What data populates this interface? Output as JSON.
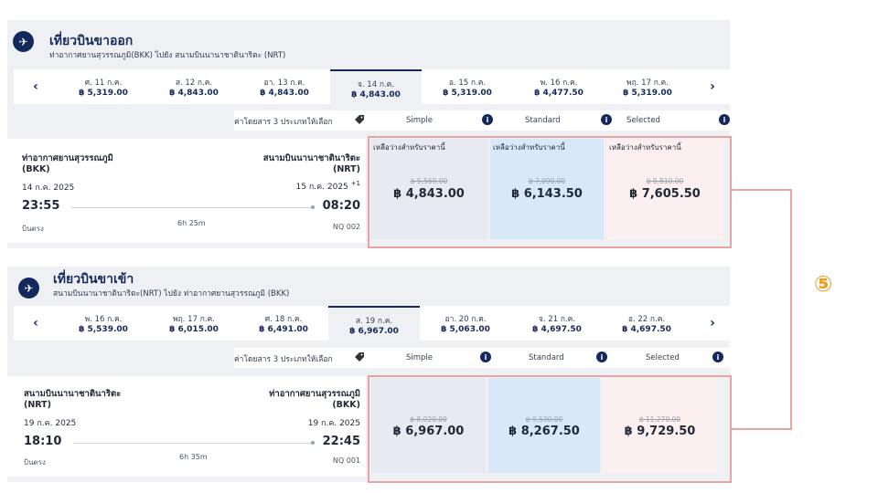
{
  "outbound": {
    "title": "เที่ยวบินขาออก",
    "route": "ท่าอากาศยานสุวรรณภูมิ(BKK) ไปยัง สนามบินนานาชาตินาริตะ (NRT)",
    "prev": "‹",
    "next": "›",
    "dates": [
      {
        "label": "ศ. 11 ก.ค.",
        "price": "฿ 5,319.00"
      },
      {
        "label": "ส. 12 ก.ค.",
        "price": "฿ 4,843.00"
      },
      {
        "label": "อา. 13 ก.ค.",
        "price": "฿ 4,843.00"
      },
      {
        "label": "จ. 14 ก.ค.",
        "price": "฿ 4,843.00"
      },
      {
        "label": "อ. 15 ก.ค.",
        "price": "฿ 5,319.00"
      },
      {
        "label": "พ. 16 ก.ค.",
        "price": "฿ 4,477.50"
      },
      {
        "label": "พฤ. 17 ก.ค.",
        "price": "฿ 5,319.00"
      }
    ],
    "fare_note": "ค่าโดยสาร 3 ประเภทให้เลือก",
    "fare_cols": [
      "Simple",
      "Standard",
      "Selected"
    ],
    "flight": {
      "from_name": "ท่าอากาศยานสุวรรณภูมิ",
      "from_code": "(BKK)",
      "to_name": "สนามบินนานาชาตินาริตะ",
      "to_code": "(NRT)",
      "dep_date": "14 ก.ค. 2025",
      "arr_date": "15 ก.ค. 2025",
      "day_offset": "+1",
      "dep_time": "23:55",
      "arr_time": "08:20",
      "stops": "บินตรง",
      "duration": "6h 25m",
      "flight_no": "NQ 002"
    },
    "fares": [
      {
        "avail": "เหลือว่างสำหรับราคานี้",
        "old": "฿ 5,560.00",
        "price": "฿ 4,843.00"
      },
      {
        "avail": "เหลือว่างสำหรับราคานี้",
        "old": "฿ 7,090.00",
        "price": "฿ 6,143.50"
      },
      {
        "avail": "เหลือว่างสำหรับราคานี้",
        "old": "฿ 8,810.00",
        "price": "฿ 7,605.50"
      }
    ]
  },
  "return": {
    "title": "เที่ยวบินขาเข้า",
    "route": "สนามบินนานาชาตินาริตะ(NRT) ไปยัง ท่าอากาศยานสุวรรณภูมิ (BKK)",
    "prev": "‹",
    "next": "›",
    "dates": [
      {
        "label": "พ. 16 ก.ค.",
        "price": "฿ 5,539.00"
      },
      {
        "label": "พฤ. 17 ก.ค.",
        "price": "฿ 6,015.00"
      },
      {
        "label": "ศ. 18 ก.ค.",
        "price": "฿ 6,491.00"
      },
      {
        "label": "ส. 19 ก.ค.",
        "price": "฿ 6,967.00"
      },
      {
        "label": "อา. 20 ก.ค.",
        "price": "฿ 5,063.00"
      },
      {
        "label": "จ. 21 ก.ค.",
        "price": "฿ 4,697.50"
      },
      {
        "label": "อ. 22 ก.ค.",
        "price": "฿ 4,697.50"
      }
    ],
    "fare_note": "ค่าโดยสาร 3 ประเภทให้เลือก",
    "fare_cols": [
      "Simple",
      "Standard",
      "Selected"
    ],
    "flight": {
      "from_name": "สนามบินนานาชาตินาริตะ",
      "from_code": "(NRT)",
      "to_name": "ท่าอากาศยานสุวรรณภูมิ",
      "to_code": "(BKK)",
      "dep_date": "19 ก.ค. 2025",
      "arr_date": "19 ก.ค. 2025",
      "dep_time": "18:10",
      "arr_time": "22:45",
      "stops": "บินตรง",
      "duration": "6h 35m",
      "flight_no": "NQ 001"
    },
    "fares": [
      {
        "old": "฿ 8,020.00",
        "price": "฿ 6,967.00"
      },
      {
        "old": "฿ 9,530.00",
        "price": "฿ 8,267.50"
      },
      {
        "old": "฿ 11,270.00",
        "price": "฿ 9,729.50"
      }
    ]
  },
  "annotation": {
    "marker": "⑤",
    "color": "#f39a1b"
  },
  "colors": {
    "brand": "#14295b",
    "highlight_border": "#e8a3a3"
  }
}
